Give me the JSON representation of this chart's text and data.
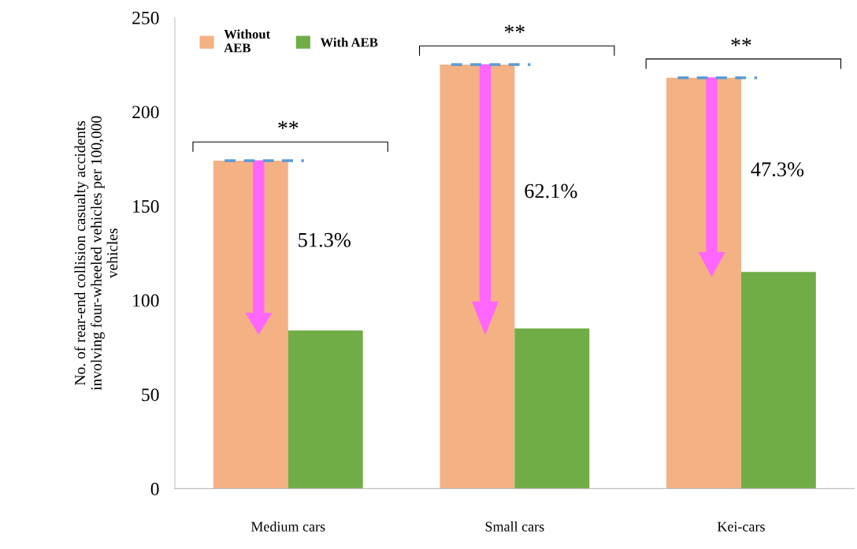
{
  "chart_data": {
    "type": "bar",
    "categories": [
      "Medium cars",
      "Small cars",
      "Kei-cars"
    ],
    "series": [
      {
        "name": "Without\nAEB",
        "color": "#f4b183",
        "values": [
          174,
          225,
          218
        ]
      },
      {
        "name": "With AEB",
        "color": "#70ad47",
        "values": [
          84,
          85,
          115
        ]
      }
    ],
    "ylabel": "No. of rear-end collision casualty accidents\ninvolving four-wheeled vehicles per 100,000\nvehicles",
    "ylim": [
      0,
      250
    ],
    "yticks": [
      0,
      50,
      100,
      150,
      200,
      250
    ],
    "grid": false,
    "legend": "top left",
    "annotations": [
      "**",
      "51.3%",
      "**",
      "62.1%",
      "**",
      "47.3%"
    ]
  }
}
